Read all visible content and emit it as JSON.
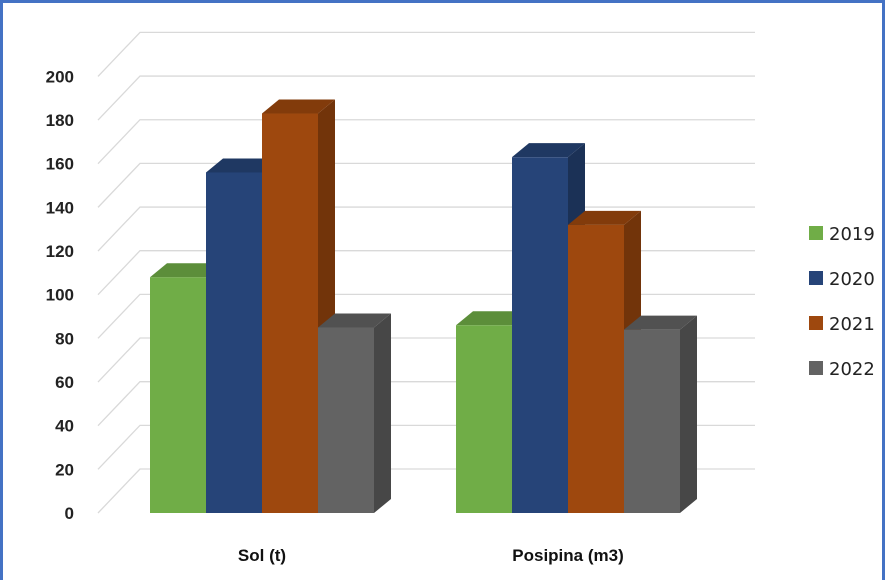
{
  "chart_data": {
    "type": "bar",
    "style": "3d-clustered-column",
    "categories": [
      "Sol (t)",
      "Posipina (m3)"
    ],
    "series": [
      {
        "name": "2019",
        "values": [
          108,
          86
        ],
        "color": "#70ad47"
      },
      {
        "name": "2020",
        "values": [
          156,
          163
        ],
        "color": "#264478"
      },
      {
        "name": "2021",
        "values": [
          183,
          132
        ],
        "color": "#9e480e"
      },
      {
        "name": "2022",
        "values": [
          85,
          84
        ],
        "color": "#636363"
      }
    ],
    "yticks": [
      0,
      20,
      40,
      60,
      80,
      100,
      120,
      140,
      160,
      180,
      200
    ],
    "ylim": [
      0,
      200
    ],
    "grid": true,
    "legend": "right"
  }
}
